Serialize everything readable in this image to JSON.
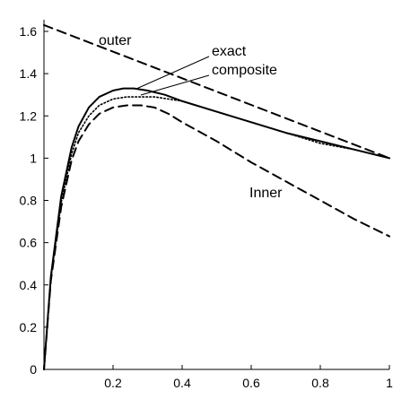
{
  "chart_data": {
    "type": "line",
    "title": "",
    "xlabel": "",
    "ylabel": "",
    "xlim": [
      0,
      1
    ],
    "ylim": [
      0,
      1.6
    ],
    "x_ticks": [
      0.2,
      0.4,
      0.6,
      0.8,
      1
    ],
    "x_tick_labels": [
      "0.2",
      "0.4",
      "0.6",
      "0.8",
      "1"
    ],
    "y_ticks": [
      0,
      0.2,
      0.4,
      0.6,
      0.8,
      1,
      1.2,
      1.4,
      1.6
    ],
    "y_tick_labels": [
      "0",
      "0.2",
      "0.4",
      "0.6",
      "0.8",
      "1",
      "1.2",
      "1.4",
      "1.6"
    ],
    "grid": false,
    "legend": "none",
    "series": [
      {
        "name": "exact",
        "style": "solid",
        "color": "#000000",
        "x": [
          0,
          0.02,
          0.05,
          0.08,
          0.1,
          0.13,
          0.16,
          0.2,
          0.23,
          0.26,
          0.3,
          0.35,
          0.4,
          0.5,
          0.6,
          0.7,
          0.8,
          0.9,
          1.0
        ],
        "y": [
          0,
          0.44,
          0.82,
          1.05,
          1.15,
          1.24,
          1.29,
          1.32,
          1.33,
          1.33,
          1.32,
          1.3,
          1.27,
          1.22,
          1.17,
          1.12,
          1.08,
          1.04,
          1.0
        ]
      },
      {
        "name": "composite",
        "style": "dotted",
        "color": "#000000",
        "x": [
          0,
          0.02,
          0.05,
          0.08,
          0.1,
          0.13,
          0.16,
          0.2,
          0.24,
          0.28,
          0.32,
          0.36,
          0.4,
          0.5,
          0.6,
          0.7,
          0.8,
          0.9,
          1.0
        ],
        "y": [
          0,
          0.43,
          0.79,
          1.02,
          1.12,
          1.2,
          1.25,
          1.28,
          1.29,
          1.29,
          1.29,
          1.28,
          1.27,
          1.22,
          1.17,
          1.12,
          1.07,
          1.04,
          1.0
        ]
      },
      {
        "name": "Inner",
        "style": "dashed",
        "color": "#000000",
        "x": [
          0,
          0.02,
          0.05,
          0.08,
          0.1,
          0.13,
          0.16,
          0.2,
          0.24,
          0.28,
          0.32,
          0.36,
          0.4,
          0.5,
          0.6,
          0.7,
          0.8,
          0.9,
          1.0
        ],
        "y": [
          0,
          0.42,
          0.77,
          0.99,
          1.08,
          1.16,
          1.21,
          1.24,
          1.25,
          1.25,
          1.24,
          1.21,
          1.17,
          1.08,
          0.98,
          0.89,
          0.8,
          0.71,
          0.63
        ]
      },
      {
        "name": "outer",
        "style": "dashed",
        "color": "#000000",
        "x": [
          0,
          1
        ],
        "y": [
          1.63,
          1.0
        ]
      }
    ],
    "annotations": [
      {
        "text": "outer",
        "series": "outer"
      },
      {
        "text": "exact",
        "series": "exact"
      },
      {
        "text": "composite",
        "series": "composite"
      },
      {
        "text": "Inner",
        "series": "Inner"
      }
    ]
  }
}
